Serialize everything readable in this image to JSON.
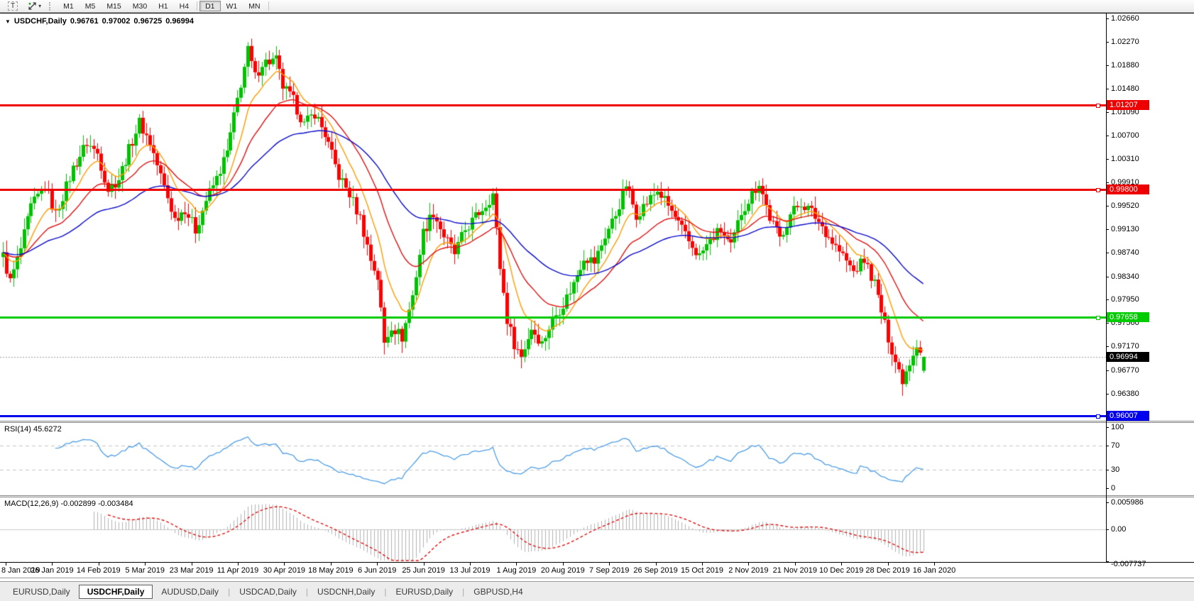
{
  "toolbar": {
    "text_tool_label": "T",
    "timeframes": [
      "M1",
      "M5",
      "M15",
      "M30",
      "H1",
      "H4",
      "D1",
      "W1",
      "MN"
    ],
    "active_timeframe": "D1"
  },
  "header": {
    "symbol_label": "USDCHF,Daily",
    "open": "0.96761",
    "high": "0.97002",
    "low": "0.96725",
    "close": "0.96994"
  },
  "price_axis": {
    "ticks": [
      "1.02660",
      "1.02270",
      "1.01880",
      "1.01480",
      "1.01090",
      "1.00700",
      "1.00310",
      "0.99910",
      "0.99520",
      "0.99130",
      "0.98740",
      "0.98340",
      "0.97950",
      "0.97560",
      "0.97170",
      "0.96770",
      "0.96380"
    ]
  },
  "hlines": [
    {
      "label": "1.01207",
      "price": 1.01207,
      "color": "#ee0000"
    },
    {
      "label": "0.99800",
      "price": 0.998,
      "color": "#ee0000"
    },
    {
      "label": "0.97658",
      "price": 0.97658,
      "color": "#00cc00"
    },
    {
      "label": "0.96007",
      "price": 0.96007,
      "color": "#0000ee"
    }
  ],
  "current_price": {
    "label": "0.96994",
    "price": 0.96994,
    "chip_color": "#000000"
  },
  "date_axis": {
    "labels": [
      "8 Jan 2019",
      "26 Jan 2019",
      "14 Feb 2019",
      "5 Mar 2019",
      "23 Mar 2019",
      "11 Apr 2019",
      "30 Apr 2019",
      "18 May 2019",
      "6 Jun 2019",
      "25 Jun 2019",
      "13 Jul 2019",
      "1 Aug 2019",
      "20 Aug 2019",
      "7 Sep 2019",
      "26 Sep 2019",
      "15 Oct 2019",
      "2 Nov 2019",
      "21 Nov 2019",
      "10 Dec 2019",
      "28 Dec 2019",
      "16 Jan 2020"
    ]
  },
  "rsi_pane": {
    "label": "RSI(14) 45.6272",
    "levels": [
      {
        "label": "100",
        "value": 100
      },
      {
        "label": "70",
        "value": 70
      },
      {
        "label": "30",
        "value": 30
      },
      {
        "label": "0",
        "value": 0
      }
    ],
    "dashed_levels": [
      70,
      30
    ],
    "line_color": "#4d9de4"
  },
  "macd_pane": {
    "label": "MACD(12,26,9) -0.002899 -0.003484",
    "levels": [
      {
        "label": "0.005986",
        "value": 0.005986
      },
      {
        "label": "0.00",
        "value": 0
      },
      {
        "label": "-0.007737",
        "value": -0.007737
      }
    ],
    "histogram_color": "#b2b2b2",
    "signal_color": "#e01010"
  },
  "tabs": [
    {
      "label": "EURUSD,Daily",
      "active": false
    },
    {
      "label": "USDCHF,Daily",
      "active": true
    },
    {
      "label": "AUDUSD,Daily",
      "active": false
    },
    {
      "label": "USDCAD,Daily",
      "active": false
    },
    {
      "label": "USDCNH,Daily",
      "active": false
    },
    {
      "label": "EURUSD,Daily",
      "active": false
    },
    {
      "label": "GBPUSD,H4",
      "active": false
    }
  ],
  "chart_data": {
    "type": "candlestick",
    "symbol": "USDCHF",
    "timeframe": "Daily",
    "n_bars": 264,
    "last_bar": {
      "open": 0.96761,
      "high": 0.97002,
      "low": 0.96725,
      "close": 0.96994
    },
    "price_axis_range": [
      0.95936,
      1.02743
    ],
    "x_axis_dates": [
      "8 Jan 2019",
      "26 Jan 2019",
      "14 Feb 2019",
      "5 Mar 2019",
      "23 Mar 2019",
      "11 Apr 2019",
      "30 Apr 2019",
      "18 May 2019",
      "6 Jun 2019",
      "25 Jun 2019",
      "13 Jul 2019",
      "1 Aug 2019",
      "20 Aug 2019",
      "7 Sep 2019",
      "26 Sep 2019",
      "15 Oct 2019",
      "2 Nov 2019",
      "21 Nov 2019",
      "10 Dec 2019",
      "28 Dec 2019",
      "16 Jan 2020"
    ],
    "close_path_anchors": [
      [
        0,
        0.9868
      ],
      [
        2,
        0.9825
      ],
      [
        5,
        0.988
      ],
      [
        8,
        0.995
      ],
      [
        12,
        0.9985
      ],
      [
        15,
        0.9938
      ],
      [
        20,
        1.0015
      ],
      [
        24,
        1.0058
      ],
      [
        27,
        1.004
      ],
      [
        30,
        0.998
      ],
      [
        33,
        0.9998
      ],
      [
        37,
        1.0062
      ],
      [
        39,
        1.0092
      ],
      [
        42,
        1.0058
      ],
      [
        45,
        1.0002
      ],
      [
        49,
        0.993
      ],
      [
        52,
        0.9948
      ],
      [
        55,
        0.9912
      ],
      [
        58,
        0.9962
      ],
      [
        61,
        0.9998
      ],
      [
        64,
        1.0042
      ],
      [
        67,
        1.013
      ],
      [
        70,
        1.0212
      ],
      [
        72,
        1.0168
      ],
      [
        74,
        1.0192
      ],
      [
        78,
        1.0196
      ],
      [
        80,
        1.0152
      ],
      [
        83,
        1.0128
      ],
      [
        86,
        1.0088
      ],
      [
        89,
        1.0108
      ],
      [
        92,
        1.0072
      ],
      [
        96,
        1.0002
      ],
      [
        99,
        0.9972
      ],
      [
        102,
        0.9932
      ],
      [
        105,
        0.9862
      ],
      [
        107,
        0.9832
      ],
      [
        109,
        0.9722
      ],
      [
        111,
        0.9752
      ],
      [
        114,
        0.9732
      ],
      [
        117,
        0.9802
      ],
      [
        120,
        0.9908
      ],
      [
        123,
        0.9942
      ],
      [
        126,
        0.9902
      ],
      [
        129,
        0.9872
      ],
      [
        132,
        0.9912
      ],
      [
        138,
        0.9955
      ],
      [
        140,
        0.9972
      ],
      [
        142,
        0.985
      ],
      [
        144,
        0.9762
      ],
      [
        146,
        0.9722
      ],
      [
        148,
        0.97
      ],
      [
        151,
        0.9748
      ],
      [
        154,
        0.9722
      ],
      [
        157,
        0.9762
      ],
      [
        160,
        0.9788
      ],
      [
        163,
        0.9822
      ],
      [
        166,
        0.9868
      ],
      [
        169,
        0.9858
      ],
      [
        172,
        0.9902
      ],
      [
        175,
        0.9938
      ],
      [
        178,
        0.9988
      ],
      [
        181,
        0.9938
      ],
      [
        184,
        0.9958
      ],
      [
        187,
        0.9978
      ],
      [
        190,
        0.9952
      ],
      [
        193,
        0.9922
      ],
      [
        196,
        0.9892
      ],
      [
        199,
        0.9868
      ],
      [
        202,
        0.9895
      ],
      [
        205,
        0.9912
      ],
      [
        208,
        0.9882
      ],
      [
        211,
        0.9942
      ],
      [
        214,
        0.9972
      ],
      [
        216,
        0.9992
      ],
      [
        219,
        0.9932
      ],
      [
        222,
        0.9898
      ],
      [
        225,
        0.9938
      ],
      [
        228,
        0.9958
      ],
      [
        231,
        0.9942
      ],
      [
        234,
        0.9918
      ],
      [
        237,
        0.9892
      ],
      [
        240,
        0.9868
      ],
      [
        243,
        0.9842
      ],
      [
        246,
        0.9862
      ],
      [
        249,
        0.9822
      ],
      [
        252,
        0.9752
      ],
      [
        255,
        0.9692
      ],
      [
        257,
        0.9662
      ],
      [
        259,
        0.9692
      ],
      [
        261,
        0.9722
      ],
      [
        263,
        0.96994
      ]
    ],
    "moving_averages": [
      {
        "period": 10,
        "color": "#ff9c00"
      },
      {
        "period": 24,
        "color": "#e01010"
      },
      {
        "period": 55,
        "color": "#0a0acc"
      }
    ],
    "horizontal_lines": [
      1.01207,
      0.998,
      0.97658,
      0.96007
    ],
    "candle_colors": {
      "up": "#00c300",
      "down": "#ff0000"
    },
    "indicators": [
      {
        "name": "RSI",
        "params": [
          14
        ],
        "current": 45.6272,
        "scale": [
          0,
          100
        ],
        "levels": [
          30,
          70
        ]
      },
      {
        "name": "MACD",
        "params": [
          12,
          26,
          9
        ],
        "current": [
          -0.002899,
          -0.003484
        ],
        "scale_top": 0.005986,
        "scale_bottom": -0.007737
      }
    ]
  }
}
